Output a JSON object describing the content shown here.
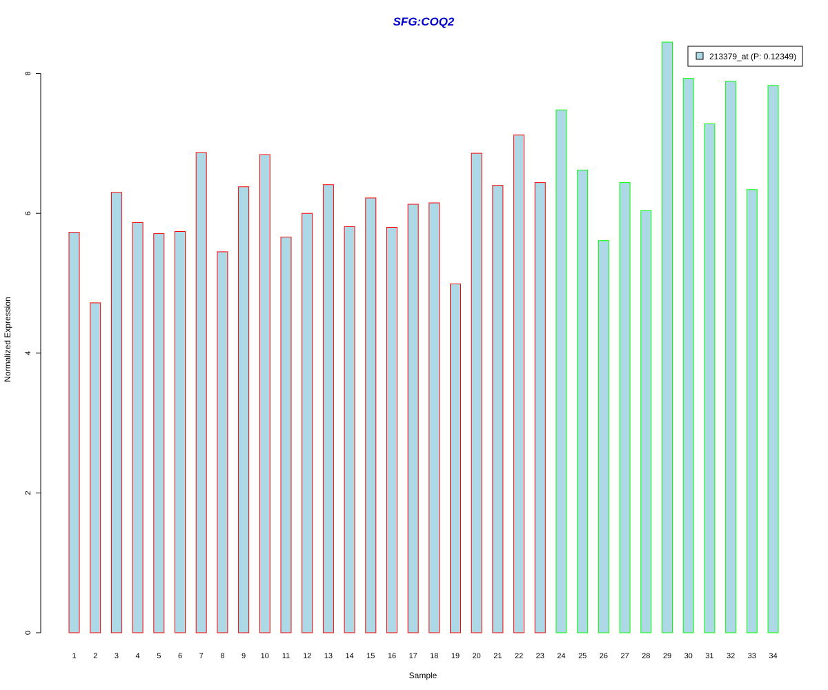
{
  "colors": {
    "bar_fill": "#add8e6",
    "group1_border": "#ff0000",
    "group2_border": "#00ff00",
    "title_color": "#0000cc",
    "axis_color": "#000000"
  },
  "chart_data": {
    "type": "bar",
    "title": "SFG:COQ2",
    "xlabel": "Sample",
    "ylabel": "Normalized Expression",
    "ylim": [
      0,
      8.5
    ],
    "yticks": [
      "0",
      "2",
      "4",
      "6",
      "8"
    ],
    "grid": false,
    "legend_position": "top-right",
    "categories": [
      "1",
      "2",
      "3",
      "4",
      "5",
      "6",
      "7",
      "8",
      "9",
      "10",
      "11",
      "12",
      "13",
      "14",
      "15",
      "16",
      "17",
      "18",
      "19",
      "20",
      "21",
      "22",
      "23",
      "24",
      "25",
      "26",
      "27",
      "28",
      "29",
      "30",
      "31",
      "32",
      "33",
      "34"
    ],
    "series": [
      {
        "name": "213379_at (P: 0.12349)",
        "values": [
          5.73,
          4.72,
          6.3,
          5.87,
          5.71,
          5.74,
          6.87,
          5.45,
          6.38,
          6.84,
          5.66,
          6.0,
          6.41,
          5.81,
          6.22,
          5.8,
          6.13,
          6.15,
          4.99,
          6.86,
          6.4,
          7.12,
          6.44,
          7.48,
          6.62,
          5.61,
          6.44,
          6.04,
          8.45,
          7.93,
          7.28,
          7.89,
          6.34,
          7.83
        ]
      }
    ],
    "bar_group": [
      1,
      1,
      1,
      1,
      1,
      1,
      1,
      1,
      1,
      1,
      1,
      1,
      1,
      1,
      1,
      1,
      1,
      1,
      1,
      1,
      1,
      1,
      1,
      2,
      2,
      2,
      2,
      2,
      2,
      2,
      2,
      2,
      2,
      2
    ]
  }
}
